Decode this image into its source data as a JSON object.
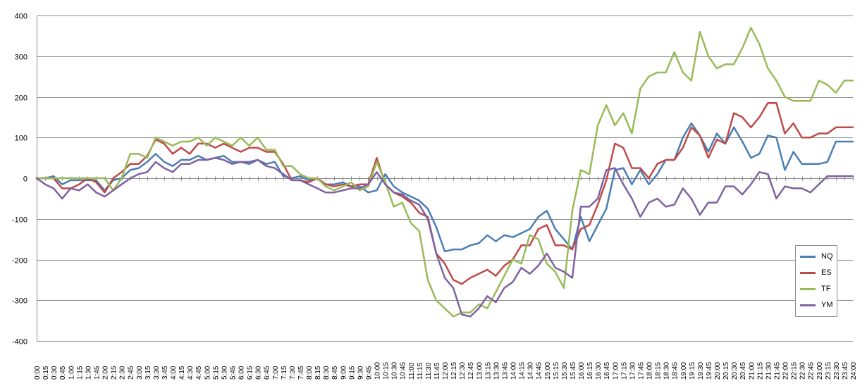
{
  "chart_data": {
    "type": "line",
    "title": "",
    "xlabel": "",
    "ylabel": "",
    "ylim": [
      -400,
      400
    ],
    "y_ticks": [
      -400,
      -300,
      -200,
      -100,
      0,
      100,
      200,
      300,
      400
    ],
    "grid": "horizontal",
    "legend_position": "right",
    "x": [
      "0:00",
      "0:15",
      "0:30",
      "0:45",
      "1:00",
      "1:15",
      "1:30",
      "1:45",
      "2:00",
      "2:15",
      "2:30",
      "2:45",
      "3:00",
      "3:15",
      "3:30",
      "3:45",
      "4:00",
      "4:15",
      "4:30",
      "4:45",
      "5:00",
      "5:15",
      "5:30",
      "5:45",
      "6:00",
      "6:15",
      "6:30",
      "6:45",
      "7:00",
      "7:15",
      "7:30",
      "7:45",
      "8:00",
      "8:15",
      "8:30",
      "8:45",
      "9:00",
      "9:15",
      "9:30",
      "9:45",
      "10:00",
      "10:15",
      "10:30",
      "10:45",
      "11:00",
      "11:15",
      "11:30",
      "11:45",
      "12:00",
      "12:15",
      "12:30",
      "12:45",
      "13:00",
      "13:15",
      "13:30",
      "13:45",
      "14:00",
      "14:15",
      "14:30",
      "14:45",
      "15:00",
      "15:15",
      "15:30",
      "15:45",
      "16:00",
      "16:15",
      "16:30",
      "16:45",
      "17:00",
      "17:15",
      "17:30",
      "17:45",
      "18:00",
      "18:15",
      "18:30",
      "18:45",
      "19:00",
      "19:15",
      "19:30",
      "19:45",
      "20:00",
      "20:15",
      "20:30",
      "20:45",
      "21:00",
      "21:15",
      "21:30",
      "21:45",
      "22:00",
      "22:15",
      "22:30",
      "22:45",
      "23:00",
      "23:15",
      "23:30",
      "23:45",
      "24:00"
    ],
    "series": [
      {
        "name": "NQ",
        "color": "#4a7eb5",
        "values": [
          0,
          0,
          5,
          -15,
          -5,
          -5,
          -5,
          -5,
          -30,
          -5,
          0,
          20,
          25,
          40,
          60,
          40,
          30,
          45,
          45,
          55,
          45,
          50,
          55,
          40,
          40,
          35,
          45,
          35,
          40,
          5,
          0,
          5,
          -5,
          0,
          -15,
          -15,
          -10,
          -20,
          -20,
          -35,
          -30,
          10,
          -20,
          -35,
          -45,
          -55,
          -75,
          -120,
          -180,
          -175,
          -175,
          -165,
          -160,
          -140,
          -155,
          -140,
          -145,
          -135,
          -125,
          -95,
          -80,
          -125,
          -150,
          -175,
          -95,
          -155,
          -115,
          -75,
          20,
          25,
          -15,
          20,
          -15,
          10,
          45,
          45,
          100,
          135,
          105,
          65,
          110,
          85,
          125,
          90,
          50,
          60,
          105,
          100,
          20,
          65,
          35,
          35,
          35,
          40,
          90,
          90,
          90
        ]
      },
      {
        "name": "ES",
        "color": "#be4b48",
        "values": [
          0,
          0,
          0,
          -25,
          -25,
          -15,
          0,
          -10,
          -35,
          0,
          15,
          35,
          35,
          55,
          95,
          85,
          60,
          75,
          60,
          85,
          85,
          75,
          85,
          75,
          65,
          75,
          75,
          65,
          65,
          35,
          -5,
          -5,
          -10,
          0,
          -15,
          -20,
          -15,
          -20,
          -15,
          -15,
          50,
          -15,
          -35,
          -45,
          -60,
          -85,
          -95,
          -185,
          -210,
          -250,
          -260,
          -245,
          -235,
          -225,
          -240,
          -215,
          -200,
          -165,
          -165,
          -125,
          -115,
          -165,
          -165,
          -175,
          -125,
          -115,
          -65,
          -5,
          85,
          75,
          25,
          25,
          0,
          35,
          45,
          45,
          75,
          125,
          105,
          50,
          95,
          85,
          160,
          150,
          125,
          150,
          185,
          185,
          110,
          135,
          100,
          100,
          110,
          110,
          125,
          125,
          125
        ]
      },
      {
        "name": "TF",
        "color": "#98bb59",
        "values": [
          0,
          0,
          0,
          0,
          0,
          0,
          0,
          0,
          0,
          -30,
          0,
          60,
          60,
          50,
          100,
          90,
          80,
          90,
          90,
          100,
          80,
          100,
          90,
          80,
          100,
          80,
          100,
          70,
          70,
          30,
          30,
          10,
          0,
          0,
          -20,
          -30,
          -20,
          -10,
          -30,
          -20,
          40,
          -10,
          -70,
          -60,
          -110,
          -130,
          -250,
          -300,
          -320,
          -340,
          -330,
          -330,
          -310,
          -320,
          -280,
          -240,
          -200,
          -210,
          -140,
          -150,
          -210,
          -230,
          -270,
          -80,
          20,
          10,
          130,
          180,
          130,
          160,
          110,
          220,
          250,
          260,
          260,
          310,
          260,
          240,
          360,
          300,
          270,
          280,
          280,
          320,
          370,
          330,
          270,
          240,
          200,
          190,
          190,
          190,
          240,
          230,
          210,
          240,
          240
        ]
      },
      {
        "name": "YM",
        "color": "#7e62a1",
        "values": [
          0,
          -15,
          -25,
          -50,
          -25,
          -30,
          -15,
          -35,
          -45,
          -30,
          -15,
          0,
          10,
          15,
          40,
          25,
          15,
          35,
          35,
          45,
          45,
          50,
          45,
          35,
          40,
          40,
          45,
          30,
          25,
          10,
          -5,
          -5,
          -15,
          -25,
          -35,
          -35,
          -30,
          -25,
          -25,
          -15,
          15,
          -15,
          -35,
          -40,
          -55,
          -65,
          -100,
          -185,
          -245,
          -270,
          -335,
          -340,
          -320,
          -290,
          -305,
          -270,
          -255,
          -220,
          -235,
          -215,
          -185,
          -220,
          -230,
          -245,
          -70,
          -70,
          -50,
          20,
          25,
          -15,
          -50,
          -95,
          -60,
          -50,
          -70,
          -65,
          -25,
          -50,
          -90,
          -60,
          -60,
          -20,
          -20,
          -40,
          -15,
          15,
          10,
          -50,
          -20,
          -25,
          -25,
          -35,
          -15,
          5,
          5,
          5,
          5
        ]
      }
    ]
  }
}
